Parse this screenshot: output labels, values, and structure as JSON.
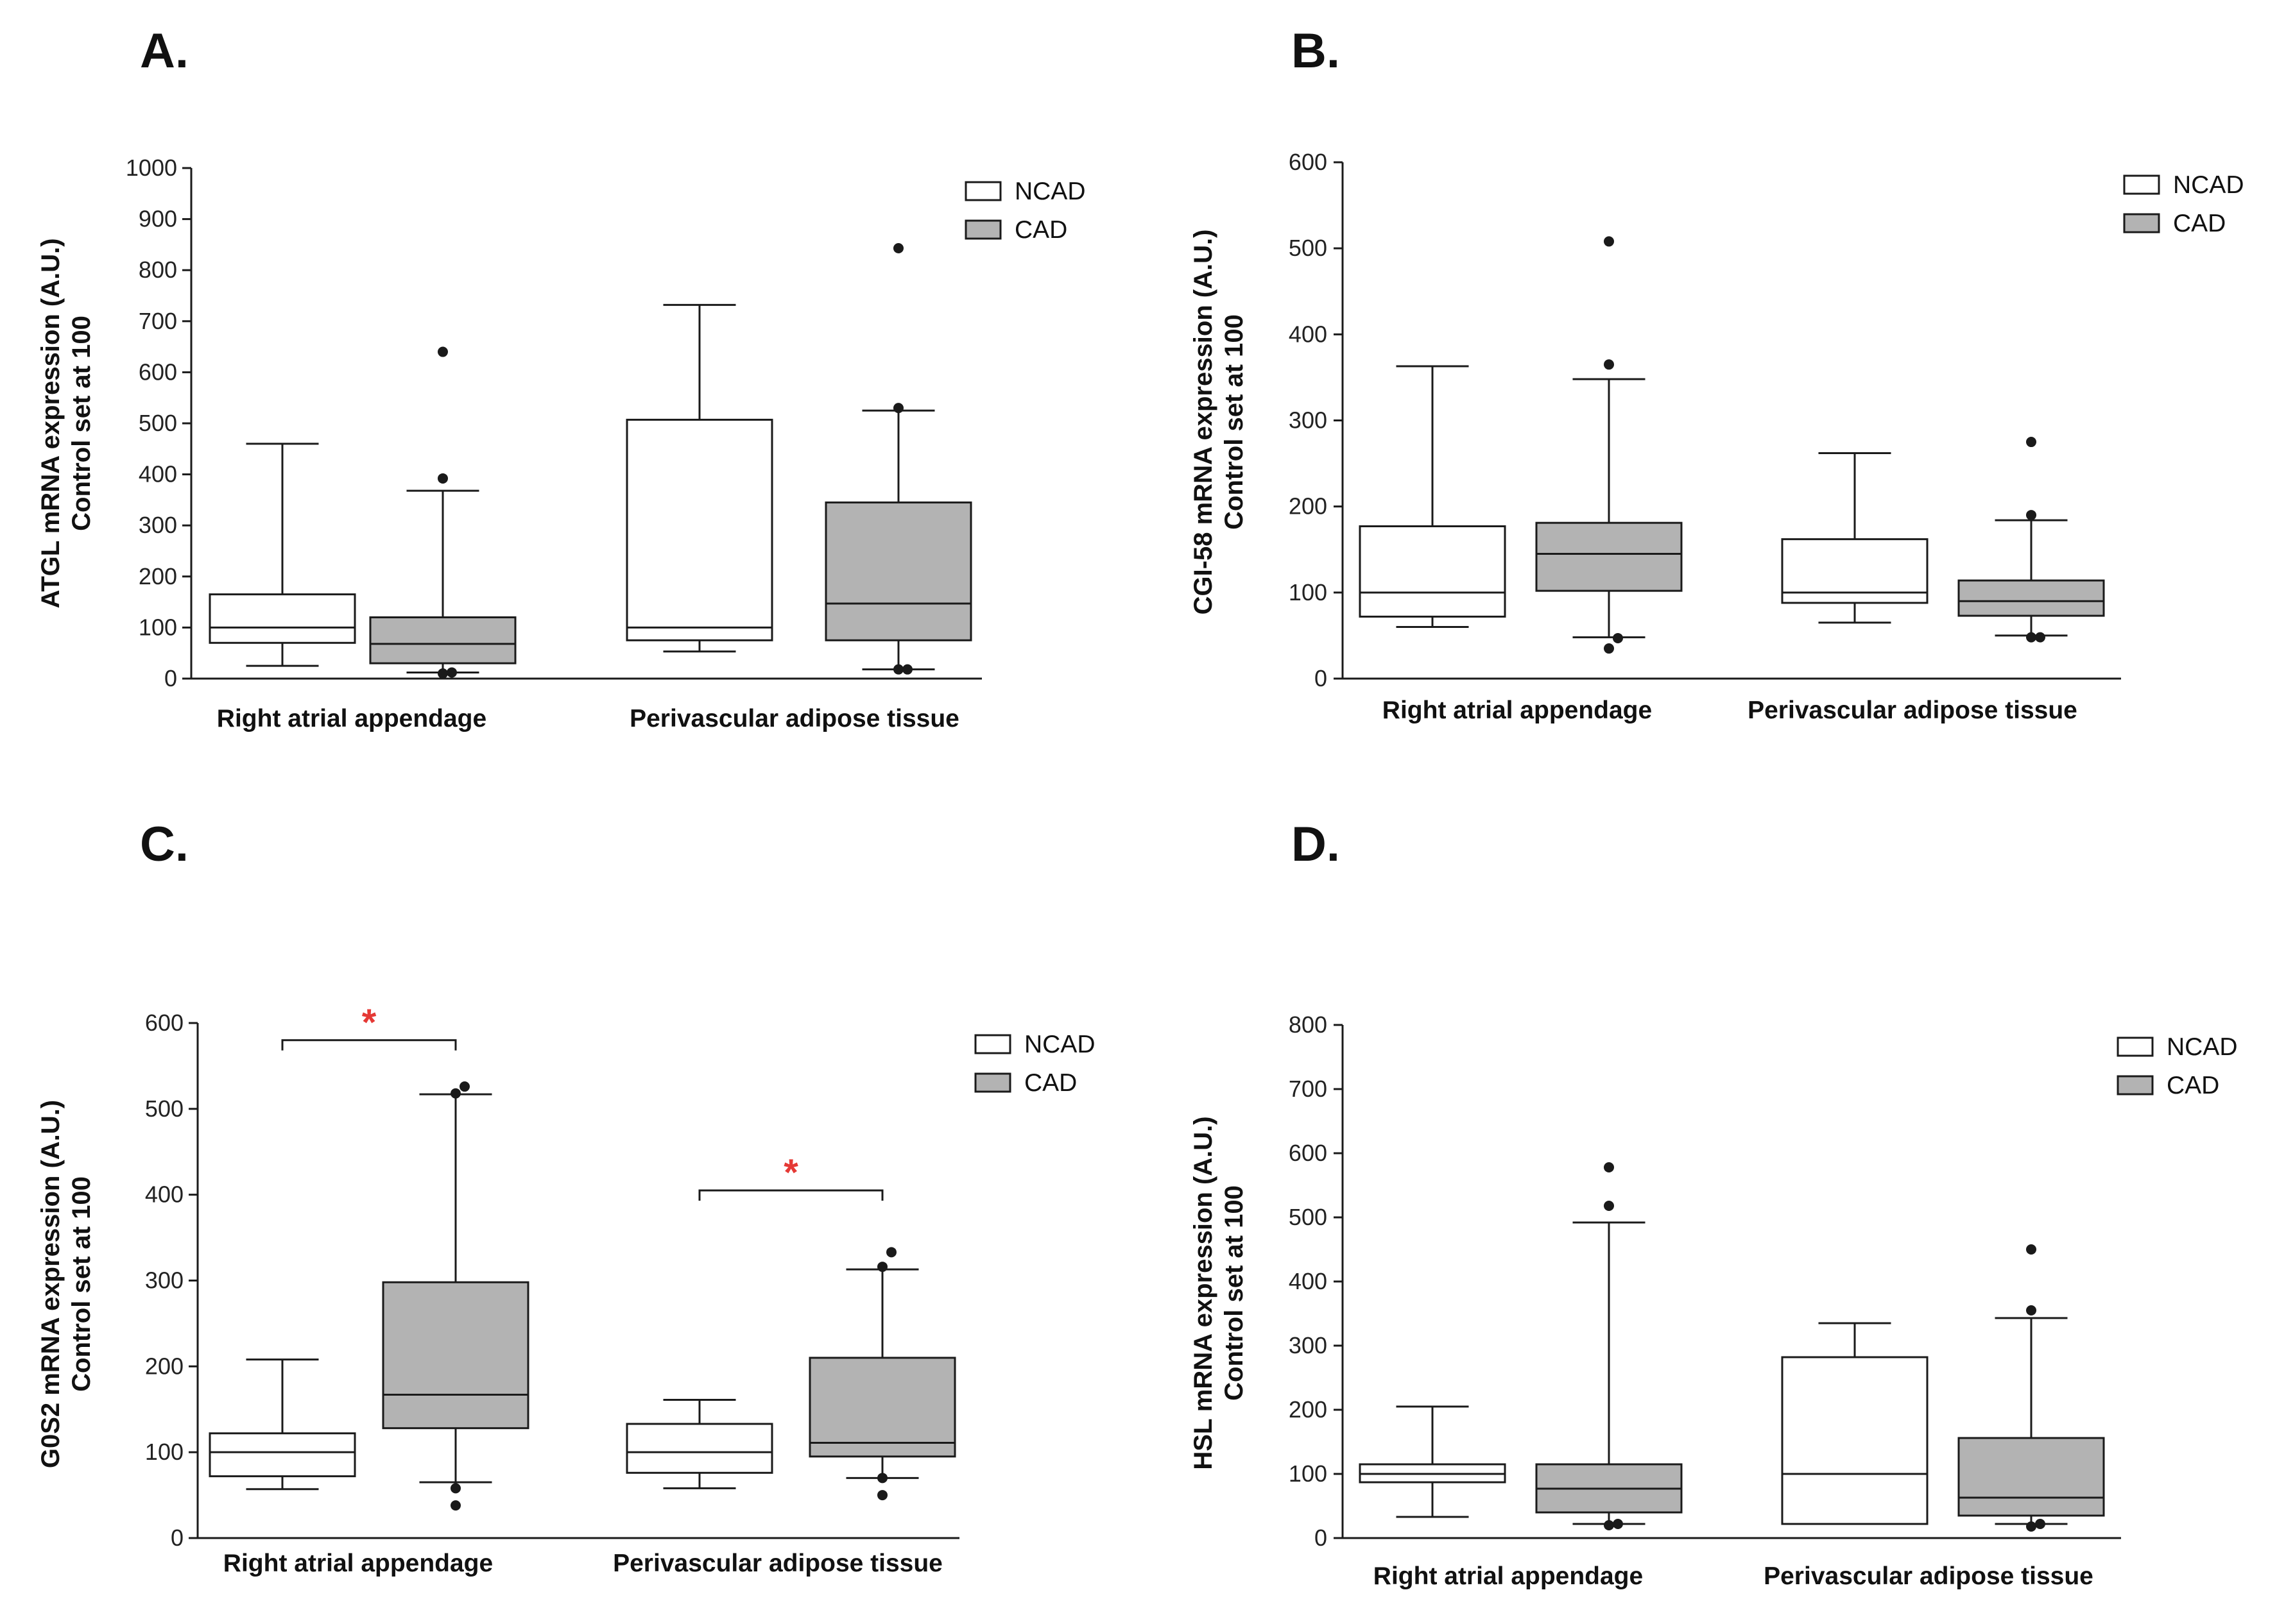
{
  "colors": {
    "ncad": "#ffffff",
    "cad": "#b3b3b3",
    "stroke": "#1a1a1a",
    "significance": "#e53935"
  },
  "chart_data": [
    {
      "panel": "A.",
      "type": "box",
      "ylabel_line1": "ATGL mRNA expression (A.U.)",
      "ylabel_line2": "Control set at 100",
      "ylim": [
        0,
        1000
      ],
      "yticks": [
        0,
        100,
        200,
        300,
        400,
        500,
        600,
        700,
        800,
        900,
        1000
      ],
      "categories": [
        "Right atrial appendage",
        "Perivascular adipose tissue"
      ],
      "legend": [
        "NCAD",
        "CAD"
      ],
      "series": [
        {
          "name": "NCAD",
          "boxes": [
            {
              "min": 25,
              "q1": 70,
              "median": 100,
              "q3": 165,
              "max": 460,
              "outliers": []
            },
            {
              "min": 53,
              "q1": 75,
              "median": 100,
              "q3": 507,
              "max": 732,
              "outliers": []
            }
          ]
        },
        {
          "name": "CAD",
          "boxes": [
            {
              "min": 12,
              "q1": 30,
              "median": 68,
              "q3": 120,
              "max": 368,
              "outliers": [
                10,
                12,
                392,
                640
              ]
            },
            {
              "min": 18,
              "q1": 75,
              "median": 147,
              "q3": 345,
              "max": 525,
              "outliers": [
                18,
                18,
                530,
                843
              ]
            }
          ]
        }
      ],
      "significance": []
    },
    {
      "panel": "B.",
      "type": "box",
      "ylabel_line1": "CGI-58 mRNA expression (A.U.)",
      "ylabel_line2": "Control set at 100",
      "ylim": [
        0,
        600
      ],
      "yticks": [
        0,
        100,
        200,
        300,
        400,
        500,
        600
      ],
      "categories": [
        "Right atrial appendage",
        "Perivascular adipose tissue"
      ],
      "legend": [
        "NCAD",
        "CAD"
      ],
      "series": [
        {
          "name": "NCAD",
          "boxes": [
            {
              "min": 60,
              "q1": 72,
              "median": 100,
              "q3": 177,
              "max": 363,
              "outliers": []
            },
            {
              "min": 65,
              "q1": 88,
              "median": 100,
              "q3": 162,
              "max": 262,
              "outliers": []
            }
          ]
        },
        {
          "name": "CAD",
          "boxes": [
            {
              "min": 48,
              "q1": 102,
              "median": 145,
              "q3": 181,
              "max": 348,
              "outliers": [
                35,
                47,
                365,
                508
              ]
            },
            {
              "min": 50,
              "q1": 73,
              "median": 90,
              "q3": 114,
              "max": 184,
              "outliers": [
                48,
                48,
                190,
                275
              ]
            }
          ]
        }
      ],
      "significance": []
    },
    {
      "panel": "C.",
      "type": "box",
      "ylabel_line1": "G0S2 mRNA expression (A.U.)",
      "ylabel_line2": "Control set at 100",
      "ylim": [
        0,
        600
      ],
      "yticks": [
        0,
        100,
        200,
        300,
        400,
        500,
        600
      ],
      "categories": [
        "Right atrial appendage",
        "Perivascular adipose tissue"
      ],
      "legend": [
        "NCAD",
        "CAD"
      ],
      "series": [
        {
          "name": "NCAD",
          "boxes": [
            {
              "min": 57,
              "q1": 72,
              "median": 100,
              "q3": 122,
              "max": 208,
              "outliers": []
            },
            {
              "min": 58,
              "q1": 76,
              "median": 100,
              "q3": 133,
              "max": 161,
              "outliers": []
            }
          ]
        },
        {
          "name": "CAD",
          "boxes": [
            {
              "min": 65,
              "q1": 128,
              "median": 167,
              "q3": 298,
              "max": 517,
              "outliers": [
                38,
                58,
                518,
                526
              ]
            },
            {
              "min": 70,
              "q1": 95,
              "median": 111,
              "q3": 210,
              "max": 313,
              "outliers": [
                50,
                70,
                316,
                333
              ]
            }
          ]
        }
      ],
      "significance": [
        {
          "category": 0,
          "bracket_at": 580,
          "label": "*"
        },
        {
          "category": 1,
          "bracket_at": 405,
          "label": "*"
        }
      ]
    },
    {
      "panel": "D.",
      "type": "box",
      "ylabel_line1": "HSL mRNA expression (A.U.)",
      "ylabel_line2": "Control set at 100",
      "ylim": [
        0,
        800
      ],
      "yticks": [
        0,
        100,
        200,
        300,
        400,
        500,
        600,
        700,
        800
      ],
      "categories": [
        "Right atrial appendage",
        "Perivascular adipose tissue"
      ],
      "legend": [
        "NCAD",
        "CAD"
      ],
      "series": [
        {
          "name": "NCAD",
          "boxes": [
            {
              "min": 33,
              "q1": 87,
              "median": 100,
              "q3": 115,
              "max": 205,
              "outliers": []
            },
            {
              "min": 22,
              "q1": 22,
              "median": 100,
              "q3": 282,
              "max": 335,
              "outliers": []
            }
          ]
        },
        {
          "name": "CAD",
          "boxes": [
            {
              "min": 22,
              "q1": 40,
              "median": 77,
              "q3": 115,
              "max": 492,
              "outliers": [
                20,
                22,
                518,
                578
              ]
            },
            {
              "min": 22,
              "q1": 35,
              "median": 63,
              "q3": 156,
              "max": 343,
              "outliers": [
                18,
                22,
                355,
                450
              ]
            }
          ]
        }
      ],
      "significance": []
    }
  ]
}
